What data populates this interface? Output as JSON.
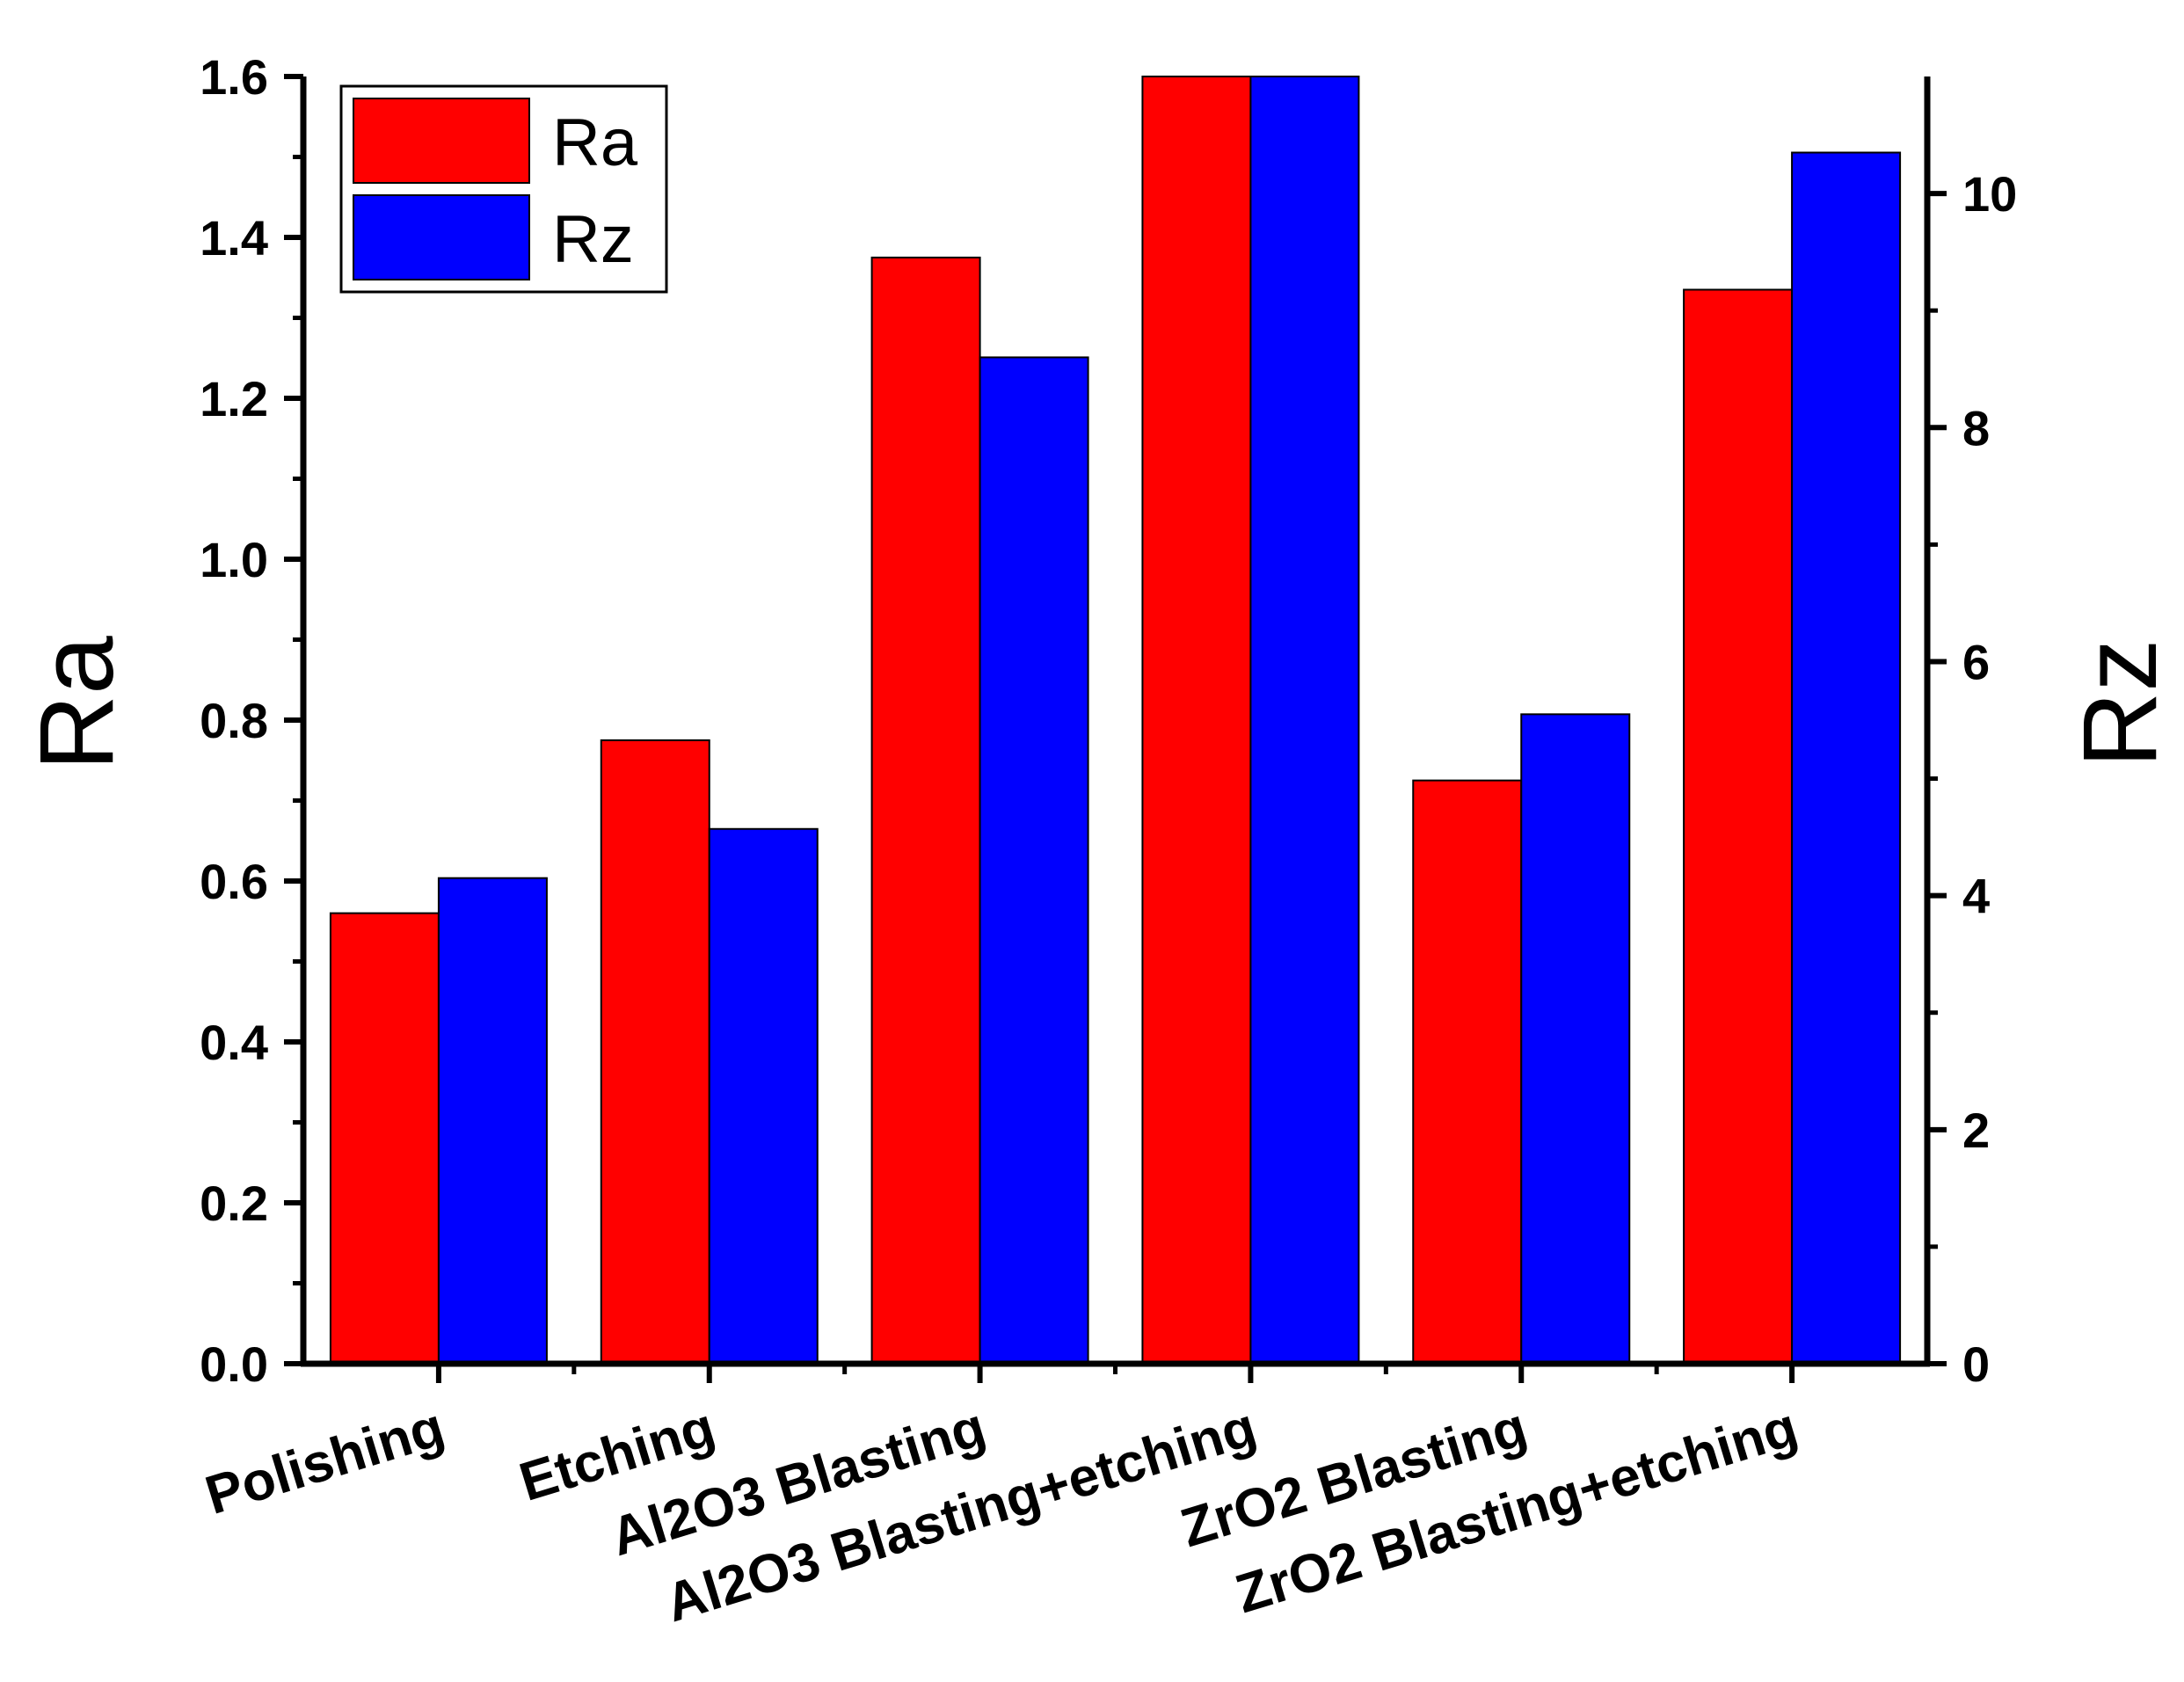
{
  "chart_data": {
    "type": "bar",
    "categories": [
      "Polishing",
      "Etching",
      "Al2O3 Blasting",
      "Al2O3 Blasting+etching",
      "ZrO2 Blasting",
      "ZrO2 Blasting+etching"
    ],
    "series": [
      {
        "name": "Ra",
        "axis": "left",
        "color": "#ff0000",
        "values": [
          0.56,
          0.775,
          1.375,
          1.6,
          0.725,
          1.335
        ]
      },
      {
        "name": "Rz",
        "axis": "right",
        "color": "#0000ff",
        "values": [
          4.15,
          4.57,
          8.6,
          11.0,
          5.55,
          10.35
        ]
      }
    ],
    "left_axis": {
      "title": "Ra",
      "ylim": [
        0,
        1.6
      ],
      "ticks": [
        "0.0",
        "0.2",
        "0.4",
        "0.6",
        "0.8",
        "1.0",
        "1.2",
        "1.4",
        "1.6"
      ]
    },
    "right_axis": {
      "title": "Rz",
      "ylim": [
        0,
        11
      ],
      "ticks": [
        "0",
        "2",
        "4",
        "6",
        "8",
        "10"
      ]
    },
    "legend": {
      "placement": "top-left",
      "entries": [
        "Ra",
        "Rz"
      ]
    },
    "grid": false
  }
}
